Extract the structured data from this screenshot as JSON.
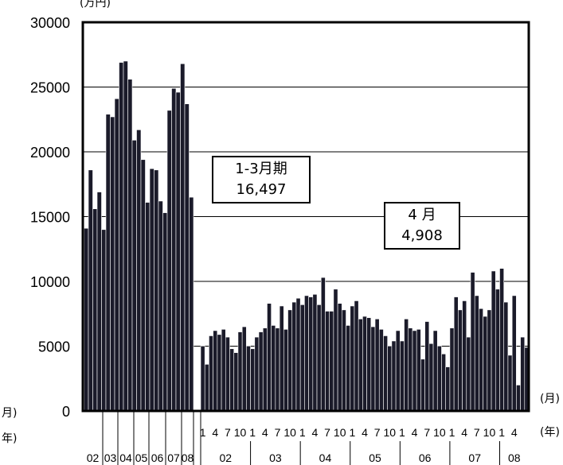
{
  "chart_data": {
    "type": "bar",
    "ylim": [
      0,
      30000
    ],
    "yticks": [
      "30000",
      "25000",
      "20000",
      "15000",
      "10000",
      "5000",
      "0"
    ],
    "yunit": "(万円)",
    "grid": true,
    "annual_labels": [
      "02",
      "03",
      "04",
      "05",
      "06",
      "07",
      "08"
    ],
    "quarterly_values": [
      14100,
      18600,
      15600,
      16900,
      14000,
      22900,
      22700,
      24100,
      26900,
      27000,
      25600,
      20900,
      21700,
      19400,
      16100,
      18700,
      18600,
      16200,
      15300,
      23200,
      24900,
      24600,
      26800,
      23700,
      16497
    ],
    "monthly_month_labels": [
      "1",
      "4",
      "7",
      "10",
      "1",
      "4",
      "7",
      "10",
      "1",
      "4",
      "7",
      "10",
      "1",
      "4",
      "7",
      "10",
      "1",
      "4",
      "7",
      "10",
      "1",
      "4",
      "7",
      "10",
      "1",
      "4"
    ],
    "monthly_year_labels": [
      "02",
      "03",
      "04",
      "05",
      "06",
      "07",
      "08"
    ],
    "monthly_values": [
      5000,
      3600,
      5800,
      6200,
      5900,
      6300,
      5700,
      4800,
      4500,
      6100,
      6500,
      5000,
      4800,
      5700,
      6100,
      6400,
      8300,
      6600,
      6400,
      8100,
      6300,
      7800,
      8400,
      8700,
      8200,
      8900,
      8800,
      9000,
      8200,
      10300,
      7700,
      7700,
      9400,
      8300,
      7800,
      6600,
      8100,
      8500,
      7100,
      7300,
      7200,
      6500,
      7100,
      6300,
      5800,
      5000,
      5400,
      6200,
      5400,
      7100,
      6400,
      6200,
      6300,
      4000,
      6900,
      5200,
      6200,
      5000,
      4400,
      3400,
      6400,
      8800,
      7800,
      8500,
      5700,
      10700,
      8900,
      7900,
      7300,
      7800,
      10800,
      9400,
      11000,
      8400,
      4300,
      8900,
      2000,
      5700,
      4908
    ],
    "xunit_month": "(月)",
    "xunit_year": "(年)",
    "left_month_label": "月)",
    "left_year_label": "年)"
  },
  "annotations": {
    "box1_line1": "1-3月期",
    "box1_line2": "16,497",
    "box2_line1": "4 月",
    "box2_line2": "4,908"
  }
}
